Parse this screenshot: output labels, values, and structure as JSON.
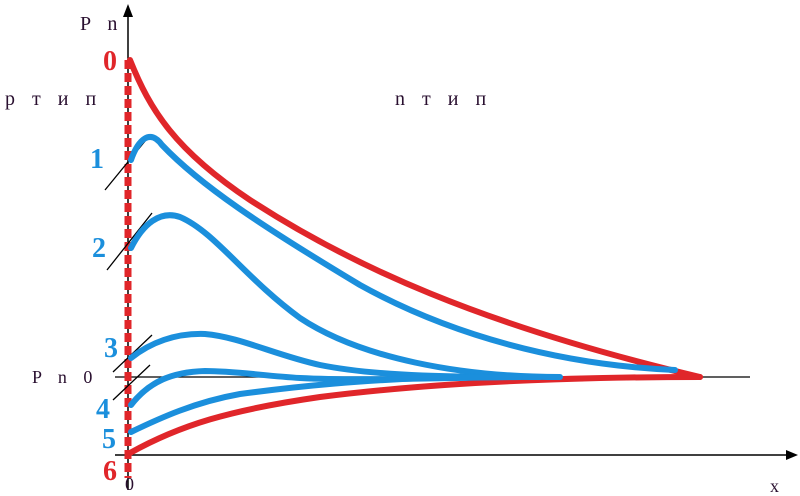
{
  "labels": {
    "y_axis": "P n",
    "x_axis": "x",
    "origin": "0",
    "equilibrium": "P n 0",
    "p_region": "p  т и п",
    "n_region": "n  т и п"
  },
  "colors": {
    "blue": "#1b8fdc",
    "red": "#e0262a",
    "axis": "#000000",
    "text": "#2a1030"
  },
  "curves": [
    {
      "label": "0",
      "color": "red"
    },
    {
      "label": "1",
      "color": "blue"
    },
    {
      "label": "2",
      "color": "blue"
    },
    {
      "label": "3",
      "color": "blue"
    },
    {
      "label": "4",
      "color": "blue"
    },
    {
      "label": "5",
      "color": "blue"
    },
    {
      "label": "6",
      "color": "red"
    }
  ]
}
